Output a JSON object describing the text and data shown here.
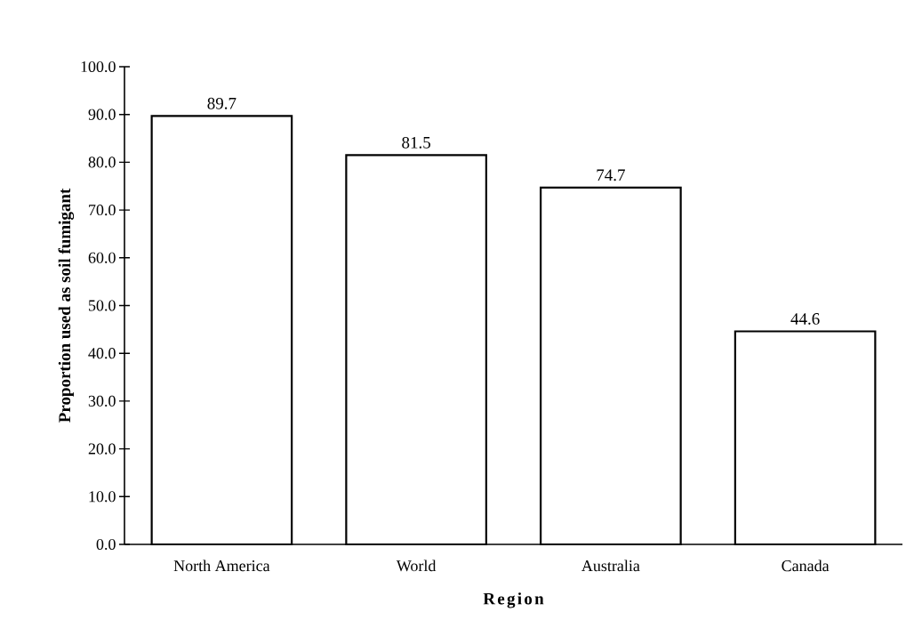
{
  "chart_data": {
    "type": "bar",
    "xlabel": "Region",
    "ylabel": "Proportion used as soil fumigant",
    "categories": [
      "North America",
      "World",
      "Australia",
      "Canada"
    ],
    "values": [
      89.7,
      81.5,
      74.7,
      44.6
    ],
    "color": "#ffffff",
    "data_labels": true,
    "ylim": [
      0,
      100
    ],
    "yticks": [
      {
        "value": 0,
        "label": "0.0"
      },
      {
        "value": 10,
        "label": "10.0"
      },
      {
        "value": 20,
        "label": "20.0"
      },
      {
        "value": 30,
        "label": "30.0"
      },
      {
        "value": 40,
        "label": "40.0"
      },
      {
        "value": 50,
        "label": "50.0"
      },
      {
        "value": 60,
        "label": "60.0"
      },
      {
        "value": 70,
        "label": "70.0"
      },
      {
        "value": 80,
        "label": "80.0"
      },
      {
        "value": 90,
        "label": "90.0"
      },
      {
        "value": 100,
        "label": "100.0"
      }
    ],
    "grid": false
  }
}
